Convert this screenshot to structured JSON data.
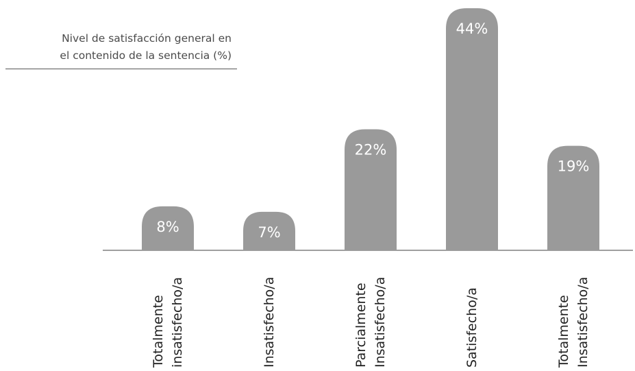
{
  "chart_data": {
    "type": "bar",
    "title_lines": [
      "Nivel de satisfacción general en",
      "el contenido de la sentencia (%)"
    ],
    "categories": [
      [
        "Totalmente",
        "insatisfecho/a"
      ],
      [
        "Insatisfecho/a"
      ],
      [
        "Parcialmente",
        "Insatisfecho/a"
      ],
      [
        "Satisfecho/a"
      ],
      [
        "Totalmente",
        "Insatisfecho/a"
      ]
    ],
    "values": [
      8,
      7,
      22,
      44,
      19
    ],
    "value_labels": [
      "8%",
      "7%",
      "22%",
      "44%",
      "19%"
    ],
    "ylim": [
      0,
      44
    ],
    "bar_color": "#9a9a9a",
    "grid": false,
    "legend": "none"
  }
}
